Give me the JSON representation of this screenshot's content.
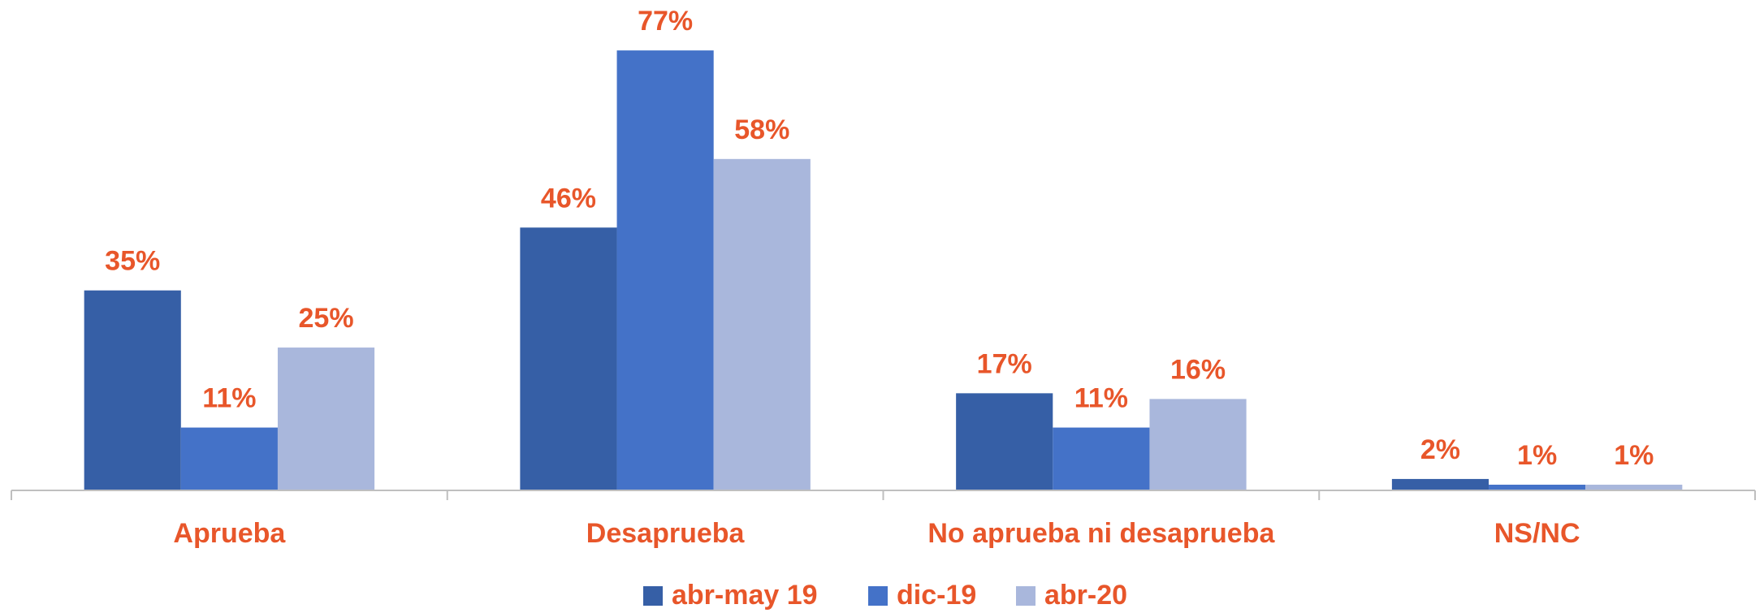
{
  "chart_data": {
    "type": "bar",
    "categories": [
      "Aprueba",
      "Desaprueba",
      "No aprueba ni desaprueba",
      "NS/NC"
    ],
    "series": [
      {
        "name": "abr-may 19",
        "color": "#365fa6",
        "values": [
          35,
          46,
          17,
          2
        ],
        "value_labels": [
          "35%",
          "46%",
          "17%",
          "2%"
        ]
      },
      {
        "name": "dic-19",
        "color": "#4472c8",
        "values": [
          11,
          77,
          11,
          1
        ],
        "value_labels": [
          "11%",
          "77%",
          "11%",
          "1%"
        ]
      },
      {
        "name": "abr-20",
        "color": "#a9b7dc",
        "values": [
          25,
          58,
          16,
          1
        ],
        "value_labels": [
          "25%",
          "58%",
          "16%",
          "1%"
        ]
      }
    ],
    "ylim": [
      0,
      80
    ],
    "legend": "bottom"
  }
}
